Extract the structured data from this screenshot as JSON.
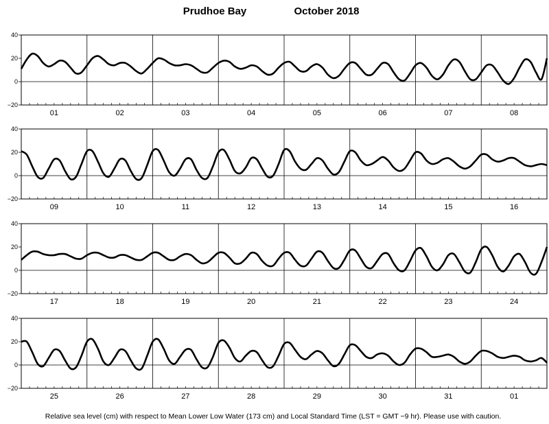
{
  "page": {
    "title_station": "Prudhoe Bay",
    "title_period": "October   2018",
    "footnote": "Relative sea level (cm) with respect to Mean Lower Low Water (173 cm) and Local Standard Time (LST = GMT −9 hr). Please use with caution."
  },
  "chart_data": [
    {
      "type": "line",
      "title": "",
      "xlabel": "",
      "ylabel": "",
      "ylim": [
        -20,
        40
      ],
      "yticks": [
        "40",
        "20",
        "0",
        "−20"
      ],
      "days": [
        "01",
        "02",
        "03",
        "04",
        "05",
        "06",
        "07",
        "08"
      ],
      "grid": true,
      "series": [
        {
          "x_unit": "hours since start of panel (6-minute ticks on axis)",
          "x": [
            0,
            2,
            4,
            6,
            8,
            10,
            12,
            14,
            16,
            18,
            20,
            22,
            24,
            26,
            28,
            30,
            32,
            34,
            36,
            38,
            40,
            42,
            44,
            46,
            48,
            50,
            52,
            54,
            56,
            58,
            60,
            62,
            64,
            66,
            68,
            70,
            72,
            74,
            76,
            78,
            80,
            82,
            84,
            86,
            88,
            90,
            92,
            94,
            96,
            98,
            100,
            102,
            104,
            106,
            108,
            110,
            112,
            114,
            116,
            118,
            120,
            122,
            124,
            126,
            128,
            130,
            132,
            134,
            136,
            138,
            140,
            142,
            144,
            146,
            148,
            150,
            152,
            154,
            156,
            158,
            160,
            162,
            164,
            166,
            168,
            170,
            172,
            174,
            176,
            178,
            180,
            182,
            184,
            186,
            188,
            190,
            192
          ],
          "values": [
            11,
            19,
            24,
            22,
            16,
            13,
            15,
            18,
            17,
            12,
            7,
            8,
            14,
            20,
            22,
            19,
            15,
            14,
            16,
            16,
            13,
            9,
            7,
            11,
            16,
            20,
            19,
            16,
            14,
            14,
            15,
            14,
            11,
            8,
            8,
            12,
            16,
            18,
            17,
            13,
            11,
            12,
            14,
            13,
            9,
            6,
            7,
            12,
            16,
            17,
            13,
            9,
            9,
            13,
            15,
            12,
            6,
            3,
            5,
            11,
            16,
            16,
            11,
            6,
            6,
            11,
            16,
            15,
            8,
            2,
            1,
            7,
            14,
            16,
            12,
            5,
            2,
            6,
            14,
            19,
            17,
            9,
            2,
            2,
            8,
            14,
            14,
            8,
            1,
            -2,
            3,
            12,
            19,
            17,
            8,
            2,
            20
          ]
        }
      ]
    },
    {
      "type": "line",
      "title": "",
      "xlabel": "",
      "ylabel": "",
      "ylim": [
        -20,
        40
      ],
      "yticks": [
        "40",
        "20",
        "0",
        "−20"
      ],
      "days": [
        "09",
        "10",
        "11",
        "12",
        "13",
        "14",
        "15",
        "16"
      ],
      "grid": true,
      "series": [
        {
          "x_unit": "hours since start of panel (6-minute ticks on axis)",
          "x": [
            0,
            2,
            4,
            6,
            8,
            10,
            12,
            14,
            16,
            18,
            20,
            22,
            24,
            26,
            28,
            30,
            32,
            34,
            36,
            38,
            40,
            42,
            44,
            46,
            48,
            50,
            52,
            54,
            56,
            58,
            60,
            62,
            64,
            66,
            68,
            70,
            72,
            74,
            76,
            78,
            80,
            82,
            84,
            86,
            88,
            90,
            92,
            94,
            96,
            98,
            100,
            102,
            104,
            106,
            108,
            110,
            112,
            114,
            116,
            118,
            120,
            122,
            124,
            126,
            128,
            130,
            132,
            134,
            136,
            138,
            140,
            142,
            144,
            146,
            148,
            150,
            152,
            154,
            156,
            158,
            160,
            162,
            164,
            166,
            168,
            170,
            172,
            174,
            176,
            178,
            180,
            182,
            184,
            186,
            188,
            190,
            192
          ],
          "values": [
            21,
            18,
            8,
            -1,
            -2,
            6,
            14,
            13,
            4,
            -3,
            -1,
            10,
            21,
            21,
            12,
            2,
            -1,
            6,
            14,
            13,
            4,
            -3,
            -2,
            9,
            21,
            22,
            13,
            3,
            0,
            6,
            14,
            14,
            5,
            -2,
            -2,
            8,
            20,
            22,
            14,
            4,
            2,
            7,
            15,
            14,
            6,
            -1,
            0,
            10,
            22,
            21,
            12,
            6,
            5,
            10,
            15,
            13,
            6,
            1,
            3,
            12,
            21,
            20,
            13,
            9,
            10,
            13,
            16,
            13,
            7,
            4,
            6,
            13,
            20,
            19,
            13,
            10,
            11,
            14,
            15,
            12,
            8,
            6,
            8,
            13,
            18,
            18,
            14,
            12,
            13,
            15,
            15,
            12,
            9,
            8,
            9,
            10,
            9
          ]
        }
      ]
    },
    {
      "type": "line",
      "title": "",
      "xlabel": "",
      "ylabel": "",
      "ylim": [
        -20,
        40
      ],
      "yticks": [
        "40",
        "20",
        "0",
        "−20"
      ],
      "days": [
        "17",
        "18",
        "19",
        "20",
        "21",
        "22",
        "23",
        "24"
      ],
      "grid": true,
      "series": [
        {
          "x_unit": "hours since start of panel (6-minute ticks on axis)",
          "x": [
            0,
            2,
            4,
            6,
            8,
            10,
            12,
            14,
            16,
            18,
            20,
            22,
            24,
            26,
            28,
            30,
            32,
            34,
            36,
            38,
            40,
            42,
            44,
            46,
            48,
            50,
            52,
            54,
            56,
            58,
            60,
            62,
            64,
            66,
            68,
            70,
            72,
            74,
            76,
            78,
            80,
            82,
            84,
            86,
            88,
            90,
            92,
            94,
            96,
            98,
            100,
            102,
            104,
            106,
            108,
            110,
            112,
            114,
            116,
            118,
            120,
            122,
            124,
            126,
            128,
            130,
            132,
            134,
            136,
            138,
            140,
            142,
            144,
            146,
            148,
            150,
            152,
            154,
            156,
            158,
            160,
            162,
            164,
            166,
            168,
            170,
            172,
            174,
            176,
            178,
            180,
            182,
            184,
            186,
            188,
            190,
            192
          ],
          "values": [
            9,
            13,
            16,
            16,
            14,
            13,
            13,
            14,
            14,
            12,
            10,
            10,
            13,
            15,
            15,
            13,
            11,
            11,
            13,
            13,
            11,
            9,
            9,
            12,
            15,
            15,
            12,
            9,
            9,
            12,
            14,
            13,
            9,
            6,
            7,
            11,
            15,
            15,
            11,
            6,
            6,
            10,
            15,
            14,
            8,
            4,
            4,
            10,
            15,
            15,
            9,
            4,
            4,
            10,
            16,
            15,
            8,
            2,
            2,
            9,
            17,
            17,
            10,
            3,
            2,
            8,
            14,
            14,
            6,
            0,
            0,
            8,
            17,
            19,
            12,
            3,
            0,
            5,
            13,
            14,
            7,
            -1,
            -2,
            7,
            18,
            20,
            13,
            3,
            -1,
            4,
            12,
            14,
            7,
            -2,
            -3,
            7,
            20
          ]
        }
      ]
    },
    {
      "type": "line",
      "title": "",
      "xlabel": "",
      "ylabel": "",
      "ylim": [
        -20,
        40
      ],
      "yticks": [
        "40",
        "20",
        "0",
        "−20"
      ],
      "days": [
        "25",
        "26",
        "27",
        "28",
        "29",
        "30",
        "31",
        "01"
      ],
      "grid": true,
      "series": [
        {
          "x_unit": "hours since start of panel (6-minute ticks on axis)",
          "x": [
            0,
            2,
            4,
            6,
            8,
            10,
            12,
            14,
            16,
            18,
            20,
            22,
            24,
            26,
            28,
            30,
            32,
            34,
            36,
            38,
            40,
            42,
            44,
            46,
            48,
            50,
            52,
            54,
            56,
            58,
            60,
            62,
            64,
            66,
            68,
            70,
            72,
            74,
            76,
            78,
            80,
            82,
            84,
            86,
            88,
            90,
            92,
            94,
            96,
            98,
            100,
            102,
            104,
            106,
            108,
            110,
            112,
            114,
            116,
            118,
            120,
            122,
            124,
            126,
            128,
            130,
            132,
            134,
            136,
            138,
            140,
            142,
            144,
            146,
            148,
            150,
            152,
            154,
            156,
            158,
            160,
            162,
            164,
            166,
            168,
            170,
            172,
            174,
            176,
            178,
            180,
            182,
            184,
            186,
            188,
            190,
            192
          ],
          "values": [
            20,
            20,
            11,
            1,
            -1,
            6,
            13,
            12,
            4,
            -3,
            -2,
            8,
            20,
            22,
            14,
            3,
            0,
            6,
            13,
            12,
            4,
            -3,
            -3,
            8,
            20,
            22,
            14,
            4,
            1,
            7,
            13,
            13,
            5,
            -2,
            -2,
            7,
            19,
            21,
            15,
            6,
            3,
            8,
            12,
            11,
            4,
            -2,
            -1,
            8,
            18,
            19,
            13,
            7,
            5,
            9,
            12,
            10,
            4,
            -1,
            1,
            9,
            17,
            17,
            12,
            7,
            6,
            9,
            10,
            8,
            3,
            0,
            2,
            9,
            14,
            14,
            11,
            7,
            7,
            8,
            9,
            7,
            3,
            1,
            3,
            8,
            12,
            12,
            10,
            7,
            6,
            7,
            8,
            7,
            4,
            3,
            4,
            6,
            2
          ]
        }
      ]
    }
  ]
}
